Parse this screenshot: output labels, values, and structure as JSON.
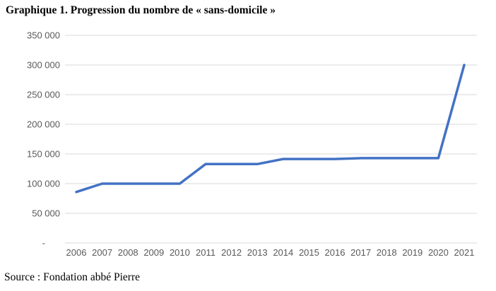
{
  "title": "Graphique 1. Progression du nombre de « sans-domicile »",
  "source": "Source : Fondation abbé Pierre",
  "chart_data": {
    "type": "line",
    "title": "Graphique 1. Progression du nombre de « sans-domicile »",
    "x": [
      "2006",
      "2007",
      "2008",
      "2009",
      "2010",
      "2011",
      "2012",
      "2013",
      "2014",
      "2015",
      "2016",
      "2017",
      "2018",
      "2019",
      "2020",
      "2021"
    ],
    "values": [
      86000,
      100000,
      100000,
      100000,
      100000,
      133000,
      133000,
      133000,
      141500,
      141500,
      141500,
      143000,
      143000,
      143000,
      143000,
      300000
    ],
    "ylim": [
      0,
      350000
    ],
    "ytick_step": 50000,
    "ytick_labels": [
      "-",
      "50 000",
      "100 000",
      "150 000",
      "200 000",
      "250 000",
      "300 000",
      "350 000"
    ],
    "xlabel": "",
    "ylabel": "",
    "grid": true,
    "legend": false,
    "line_color": "#4472C4",
    "gridline_color": "#DADADA",
    "tick_label_color": "#595959"
  }
}
